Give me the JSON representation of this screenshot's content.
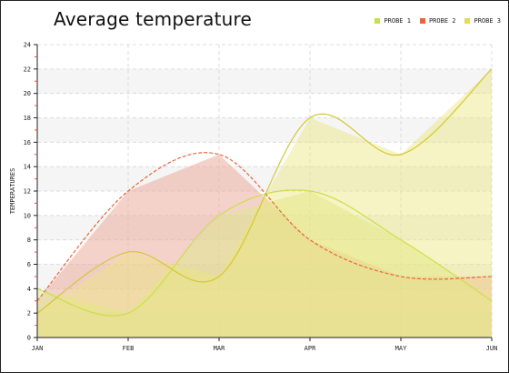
{
  "chart_data": {
    "type": "area",
    "title": "Average temperature",
    "ylabel": "TEMPERATURES",
    "xlabel": "",
    "categories": [
      "JAN",
      "FEB",
      "MAR",
      "APR",
      "MAY",
      "JUN"
    ],
    "ylim": [
      0,
      24
    ],
    "yticks": [
      0,
      2,
      4,
      6,
      8,
      10,
      12,
      14,
      16,
      18,
      20,
      22,
      24
    ],
    "grid": true,
    "legend_position": "top-right",
    "series": [
      {
        "name": "PROBE 1",
        "color": "#c8e04a",
        "values": [
          4,
          2,
          10,
          12,
          8,
          3
        ]
      },
      {
        "name": "PROBE 2",
        "color": "#e8663c",
        "values": [
          3,
          12,
          15,
          8,
          5,
          5
        ]
      },
      {
        "name": "PROBE 3",
        "color": "#e6dc50",
        "values": [
          2,
          7,
          5,
          18,
          15,
          22
        ]
      }
    ]
  }
}
